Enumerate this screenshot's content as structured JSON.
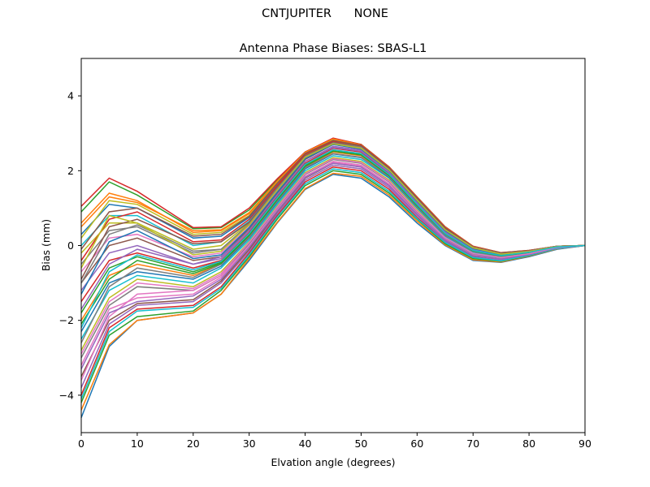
{
  "suptitle": "CNTJUPITER      NONE",
  "chart_data": {
    "type": "line",
    "title": "Antenna Phase Biases: SBAS-L1",
    "xlabel": "Elvation angle (degrees)",
    "ylabel": "Bias (mm)",
    "xlim": [
      0,
      90
    ],
    "ylim": [
      -5,
      5
    ],
    "xticks": [
      0,
      10,
      20,
      30,
      40,
      50,
      60,
      70,
      80,
      90
    ],
    "yticks": [
      -4,
      -2,
      0,
      2,
      4
    ],
    "grid": false,
    "legend": "none",
    "series_note_count": 80,
    "colors": [
      "#1f77b4",
      "#ff7f0e",
      "#2ca02c",
      "#d62728",
      "#9467bd",
      "#8c564b",
      "#e377c2",
      "#7f7f7f",
      "#bcbd22",
      "#17becf"
    ],
    "x": [
      0,
      5,
      10,
      20,
      25,
      30,
      35,
      40,
      45,
      50,
      55,
      60,
      65,
      70,
      75,
      80,
      85,
      90
    ],
    "series": [
      {
        "values": [
          -4.6,
          -2.7,
          -2.0,
          -1.8,
          -1.3,
          -0.4,
          0.6,
          1.5,
          1.9,
          1.8,
          1.3,
          0.6,
          0.0,
          -0.4,
          -0.45,
          -0.3,
          -0.1,
          0.0
        ]
      },
      {
        "values": [
          -4.4,
          -2.65,
          -2.0,
          -1.8,
          -1.3,
          -0.35,
          0.62,
          1.52,
          1.93,
          1.85,
          1.35,
          0.65,
          0.02,
          -0.38,
          -0.44,
          -0.28,
          -0.09,
          0.0
        ]
      },
      {
        "values": [
          -4.2,
          -2.4,
          -1.9,
          -1.75,
          -1.2,
          -0.3,
          0.7,
          1.6,
          2.0,
          1.9,
          1.4,
          0.7,
          0.05,
          -0.35,
          -0.42,
          -0.27,
          -0.08,
          0.0
        ]
      },
      {
        "values": [
          -4.0,
          -2.2,
          -1.7,
          -1.6,
          -1.1,
          -0.2,
          0.8,
          1.7,
          2.1,
          2.0,
          1.5,
          0.75,
          0.1,
          -0.3,
          -0.4,
          -0.25,
          -0.08,
          0.0
        ]
      },
      {
        "values": [
          -3.8,
          -2.1,
          -1.6,
          -1.5,
          -1.0,
          -0.15,
          0.85,
          1.75,
          2.15,
          2.05,
          1.55,
          0.8,
          0.12,
          -0.3,
          -0.38,
          -0.25,
          -0.07,
          0.0
        ]
      },
      {
        "values": [
          -3.5,
          -2.0,
          -1.55,
          -1.45,
          -0.95,
          -0.1,
          0.9,
          1.8,
          2.2,
          2.1,
          1.6,
          0.85,
          0.15,
          -0.28,
          -0.36,
          -0.24,
          -0.07,
          0.0
        ]
      },
      {
        "values": [
          -3.2,
          -1.7,
          -1.4,
          -1.3,
          -0.85,
          0.0,
          0.95,
          1.85,
          2.25,
          2.15,
          1.65,
          0.88,
          0.18,
          -0.25,
          -0.35,
          -0.23,
          -0.06,
          0.0
        ]
      },
      {
        "values": [
          -3.0,
          -1.6,
          -1.1,
          -1.2,
          -0.8,
          0.05,
          1.0,
          1.9,
          2.3,
          2.2,
          1.7,
          0.9,
          0.2,
          -0.22,
          -0.33,
          -0.22,
          -0.06,
          0.0
        ]
      },
      {
        "values": [
          -2.8,
          -1.4,
          -0.9,
          -1.1,
          -0.7,
          0.1,
          1.05,
          1.95,
          2.35,
          2.25,
          1.75,
          0.95,
          0.22,
          -0.2,
          -0.32,
          -0.21,
          -0.05,
          0.0
        ]
      },
      {
        "values": [
          -2.5,
          -1.2,
          -0.8,
          -1.0,
          -0.6,
          0.15,
          1.1,
          2.0,
          2.4,
          2.3,
          1.8,
          1.0,
          0.25,
          -0.18,
          -0.3,
          -0.2,
          -0.05,
          0.0
        ]
      },
      {
        "values": [
          -2.3,
          -1.0,
          -0.7,
          -0.9,
          -0.55,
          0.2,
          1.15,
          2.05,
          2.45,
          2.35,
          1.82,
          1.02,
          0.27,
          -0.16,
          -0.29,
          -0.2,
          -0.05,
          0.0
        ]
      },
      {
        "values": [
          -2.0,
          -0.8,
          -0.5,
          -0.8,
          -0.5,
          0.25,
          1.2,
          2.1,
          2.5,
          2.4,
          1.85,
          1.05,
          0.3,
          -0.15,
          -0.28,
          -0.19,
          -0.04,
          0.0
        ]
      },
      {
        "values": [
          -1.8,
          -0.6,
          -0.3,
          -0.7,
          -0.45,
          0.3,
          1.25,
          2.15,
          2.55,
          2.45,
          1.9,
          1.1,
          0.32,
          -0.13,
          -0.27,
          -0.18,
          -0.04,
          0.0
        ]
      },
      {
        "values": [
          -1.5,
          -0.4,
          -0.2,
          -0.6,
          -0.4,
          0.35,
          1.3,
          2.2,
          2.6,
          2.5,
          1.92,
          1.12,
          0.35,
          -0.12,
          -0.26,
          -0.18,
          -0.04,
          0.0
        ]
      },
      {
        "values": [
          -1.2,
          -0.2,
          0.0,
          -0.5,
          -0.35,
          0.4,
          1.35,
          2.25,
          2.65,
          2.55,
          1.95,
          1.15,
          0.37,
          -0.1,
          -0.25,
          -0.17,
          -0.03,
          0.0
        ]
      },
      {
        "values": [
          -1.0,
          0.0,
          0.2,
          -0.4,
          -0.3,
          0.45,
          1.4,
          2.3,
          2.7,
          2.6,
          2.0,
          1.2,
          0.4,
          -0.08,
          -0.24,
          -0.16,
          -0.03,
          0.0
        ]
      },
      {
        "values": [
          -0.7,
          0.2,
          0.3,
          -0.3,
          -0.2,
          0.5,
          1.45,
          2.35,
          2.72,
          2.62,
          2.02,
          1.22,
          0.42,
          -0.06,
          -0.23,
          -0.16,
          -0.03,
          0.0
        ]
      },
      {
        "values": [
          -0.5,
          0.4,
          0.5,
          -0.2,
          -0.1,
          0.55,
          1.5,
          2.4,
          2.75,
          2.65,
          2.05,
          1.25,
          0.45,
          -0.05,
          -0.22,
          -0.15,
          -0.02,
          0.0
        ]
      },
      {
        "values": [
          -0.2,
          0.6,
          0.6,
          -0.1,
          0.0,
          0.6,
          1.55,
          2.42,
          2.78,
          2.67,
          2.07,
          1.27,
          0.47,
          -0.04,
          -0.21,
          -0.15,
          -0.02,
          0.0
        ]
      },
      {
        "values": [
          0.0,
          0.8,
          0.8,
          0.0,
          0.1,
          0.65,
          1.6,
          2.45,
          2.8,
          2.7,
          2.1,
          1.3,
          0.5,
          -0.03,
          -0.2,
          -0.14,
          -0.02,
          0.0
        ]
      },
      {
        "values": [
          0.3,
          1.1,
          1.0,
          0.2,
          0.25,
          0.75,
          1.65,
          2.47,
          2.82,
          2.68,
          2.08,
          1.28,
          0.48,
          -0.04,
          -0.2,
          -0.14,
          -0.02,
          0.0
        ]
      },
      {
        "values": [
          0.6,
          1.4,
          1.2,
          0.35,
          0.4,
          0.85,
          1.7,
          2.48,
          2.84,
          2.69,
          2.09,
          1.29,
          0.49,
          -0.03,
          -0.2,
          -0.14,
          -0.02,
          0.0
        ]
      },
      {
        "values": [
          0.9,
          1.7,
          1.35,
          0.45,
          0.48,
          0.95,
          1.75,
          2.5,
          2.86,
          2.7,
          2.1,
          1.3,
          0.5,
          -0.02,
          -0.19,
          -0.13,
          -0.02,
          0.0
        ]
      },
      {
        "values": [
          1.05,
          1.8,
          1.45,
          0.48,
          0.5,
          1.0,
          1.78,
          2.5,
          2.87,
          2.7,
          2.1,
          1.3,
          0.5,
          -0.02,
          -0.19,
          -0.13,
          -0.02,
          0.0
        ]
      },
      {
        "values": [
          -1.7,
          -0.5,
          -0.1,
          -0.5,
          -0.3,
          0.4,
          1.35,
          2.25,
          2.62,
          2.52,
          1.95,
          1.15,
          0.36,
          -0.1,
          -0.25,
          -0.17,
          -0.03,
          0.0
        ]
      },
      {
        "values": [
          -0.9,
          0.5,
          0.7,
          0.05,
          0.1,
          0.62,
          1.55,
          2.4,
          2.76,
          2.64,
          2.04,
          1.24,
          0.44,
          -0.05,
          -0.22,
          -0.15,
          -0.02,
          0.0
        ]
      },
      {
        "values": [
          -3.6,
          -1.9,
          -1.3,
          -1.2,
          -0.8,
          0.0,
          0.95,
          1.85,
          2.22,
          2.12,
          1.62,
          0.86,
          0.16,
          -0.27,
          -0.36,
          -0.23,
          -0.06,
          0.0
        ]
      },
      {
        "values": [
          -2.6,
          -1.1,
          -0.6,
          -0.85,
          -0.5,
          0.22,
          1.18,
          2.08,
          2.46,
          2.36,
          1.84,
          1.04,
          0.28,
          -0.16,
          -0.29,
          -0.2,
          -0.05,
          0.0
        ]
      },
      {
        "values": [
          0.2,
          1.2,
          1.1,
          0.3,
          0.35,
          0.8,
          1.68,
          2.46,
          2.83,
          2.68,
          2.08,
          1.28,
          0.48,
          -0.04,
          -0.2,
          -0.14,
          -0.02,
          0.0
        ]
      },
      {
        "values": [
          -4.1,
          -2.3,
          -1.75,
          -1.65,
          -1.15,
          -0.25,
          0.75,
          1.65,
          2.05,
          1.95,
          1.45,
          0.72,
          0.08,
          -0.32,
          -0.41,
          -0.26,
          -0.08,
          0.0
        ]
      },
      {
        "values": [
          -1.3,
          0.1,
          0.4,
          -0.35,
          -0.25,
          0.48,
          1.42,
          2.32,
          2.7,
          2.58,
          2.0,
          1.19,
          0.4,
          -0.08,
          -0.24,
          -0.16,
          -0.03,
          0.0
        ]
      },
      {
        "values": [
          0.5,
          1.3,
          1.15,
          0.4,
          0.42,
          0.88,
          1.72,
          2.49,
          2.85,
          2.69,
          2.09,
          1.29,
          0.49,
          -0.03,
          -0.2,
          -0.14,
          -0.02,
          0.0
        ]
      },
      {
        "values": [
          -2.1,
          -0.9,
          -0.4,
          -0.75,
          -0.48,
          0.27,
          1.22,
          2.12,
          2.52,
          2.42,
          1.87,
          1.07,
          0.31,
          -0.14,
          -0.28,
          -0.19,
          -0.04,
          0.0
        ]
      },
      {
        "values": [
          -0.4,
          0.7,
          0.9,
          0.1,
          0.15,
          0.7,
          1.6,
          2.44,
          2.79,
          2.68,
          2.08,
          1.28,
          0.48,
          -0.04,
          -0.21,
          -0.14,
          -0.02,
          0.0
        ]
      },
      {
        "values": [
          -3.3,
          -1.8,
          -1.5,
          -1.35,
          -0.9,
          -0.05,
          0.92,
          1.82,
          2.2,
          2.1,
          1.6,
          0.84,
          0.15,
          -0.27,
          -0.36,
          -0.24,
          -0.06,
          0.0
        ]
      },
      {
        "values": [
          -0.1,
          0.9,
          1.0,
          0.25,
          0.3,
          0.78,
          1.66,
          2.46,
          2.81,
          2.67,
          2.07,
          1.27,
          0.47,
          -0.04,
          -0.2,
          -0.14,
          -0.02,
          0.0
        ]
      },
      {
        "values": [
          -2.9,
          -1.5,
          -1.0,
          -1.15,
          -0.75,
          0.08,
          1.02,
          1.92,
          2.32,
          2.22,
          1.72,
          0.92,
          0.21,
          -0.21,
          -0.32,
          -0.22,
          -0.05,
          0.0
        ]
      },
      {
        "values": [
          -1.0,
          0.3,
          0.55,
          -0.15,
          -0.1,
          0.58,
          1.52,
          2.38,
          2.74,
          2.63,
          2.03,
          1.23,
          0.43,
          -0.05,
          -0.22,
          -0.15,
          -0.02,
          0.0
        ]
      },
      {
        "values": [
          -0.6,
          0.8,
          0.6,
          -0.25,
          -0.15,
          0.55,
          1.48,
          2.36,
          2.72,
          2.6,
          2.02,
          1.21,
          0.42,
          -0.06,
          -0.23,
          -0.16,
          -0.03,
          0.0
        ]
      },
      {
        "values": [
          -2.2,
          -0.7,
          -0.25,
          -0.65,
          -0.42,
          0.32,
          1.27,
          2.17,
          2.56,
          2.46,
          1.9,
          1.1,
          0.32,
          -0.13,
          -0.27,
          -0.18,
          -0.04,
          0.0
        ]
      }
    ]
  }
}
